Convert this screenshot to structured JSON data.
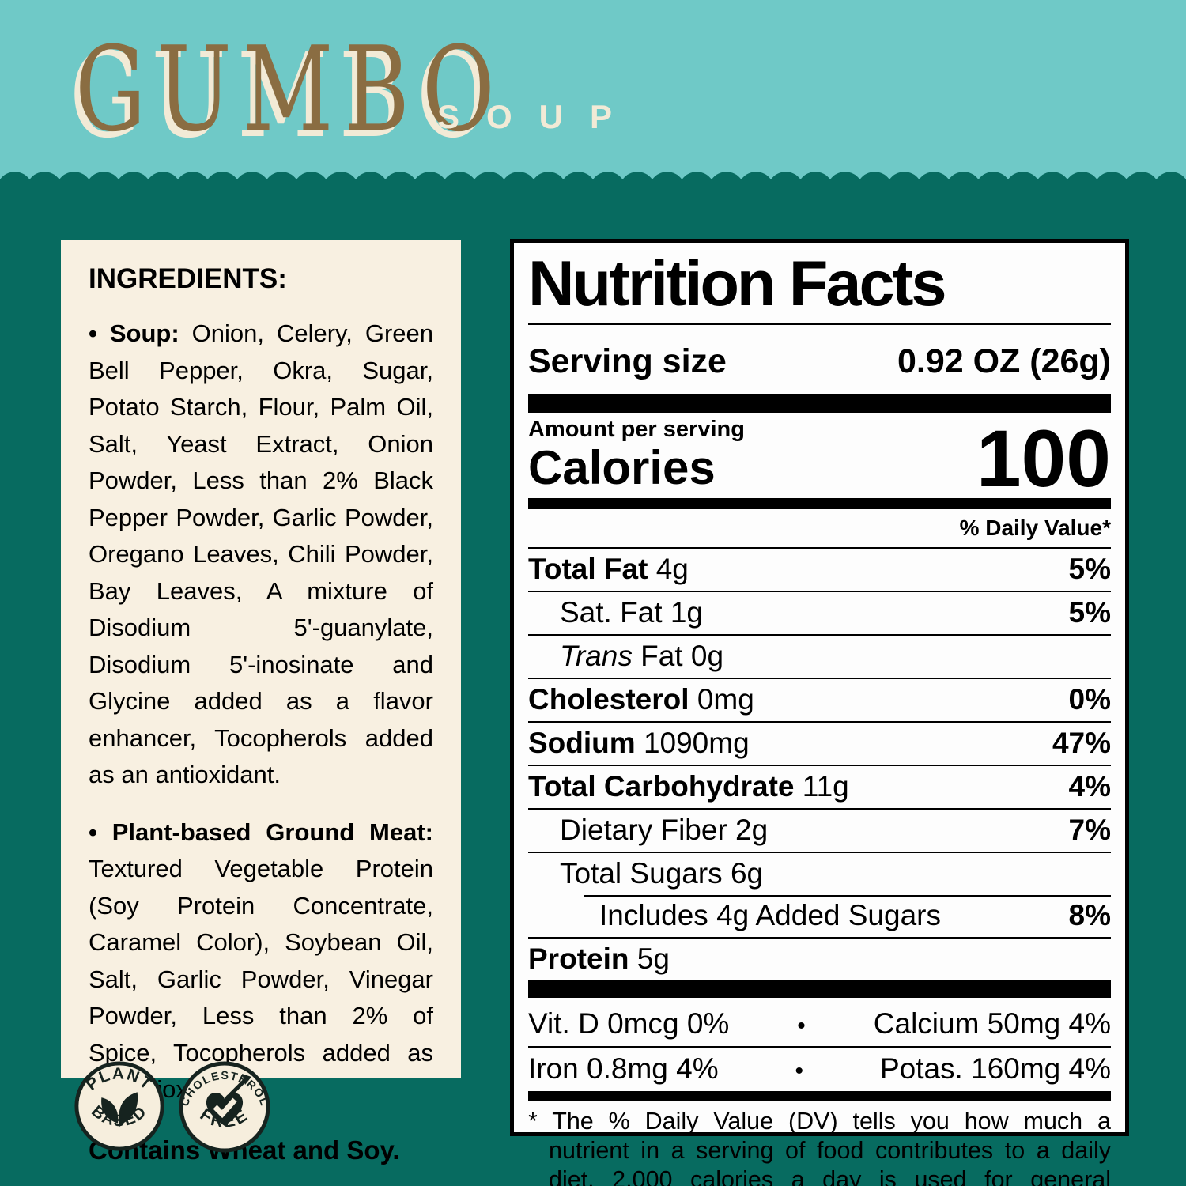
{
  "header": {
    "title": "GUMBO",
    "subtitle": "SOUP"
  },
  "colors": {
    "light_teal": "#6fc9c7",
    "dark_teal": "#076b60",
    "cream_panel": "#f8f0e1",
    "brown_title": "#8a6d42",
    "badge_ink": "#16231f",
    "label_bg": "#fdfdfd"
  },
  "ingredients": {
    "heading": "INGREDIENTS:",
    "paragraphs": [
      {
        "bullet": "•",
        "lead": "Soup:",
        "text": " Onion, Celery, Green Bell Pepper, Okra, Sugar, Potato Starch, Flour, Palm Oil, Salt, Yeast Extract, Onion Powder, Less than 2% Black Pepper Powder, Garlic Powder, Oregano Leaves, Chili Powder, Bay Leaves, A mixture of Disodium 5'-guanylate, Disodium 5'-inosinate and Glycine added as a flavor enhancer, Tocopherols added as an antioxidant."
      },
      {
        "bullet": "•",
        "lead": "Plant-based Ground Meat:",
        "text": " Textured Vegetable Protein (Soy Protein Concentrate, Caramel Color), Soybean Oil, Salt, Garlic Powder, Vinegar Powder, Less than 2% of Spice, Tocopherols added as an antioxidant."
      }
    ],
    "contains": "Contains Wheat and Soy."
  },
  "badges": [
    {
      "icon": "leaves-icon",
      "top": "PLANT",
      "bottom": "BASED"
    },
    {
      "icon": "heart-check-icon",
      "top": "CHOLESTEROL",
      "bottom": "FREE"
    }
  ],
  "nutrition": {
    "title": "Nutrition Facts",
    "serving_size_label": "Serving size",
    "serving_size_value": "0.92 OZ (26g)",
    "amount_label": "Amount per serving",
    "calories_label": "Calories",
    "calories_value": "100",
    "daily_value_header": "% Daily Value*",
    "rows": [
      {
        "bold": "Total Fat",
        "text": " 4g",
        "pct": "5%",
        "indent": 0,
        "rule": "none"
      },
      {
        "text": "Sat. Fat 1g",
        "pct": "5%",
        "indent": 1,
        "rule": "full"
      },
      {
        "italic": "Trans",
        "text": " Fat 0g",
        "pct": "",
        "indent": 1,
        "rule": "full"
      },
      {
        "bold": "Cholesterol",
        "text": " 0mg",
        "pct": "0%",
        "indent": 0,
        "rule": "full"
      },
      {
        "bold": "Sodium",
        "text": " 1090mg",
        "pct": "47%",
        "indent": 0,
        "rule": "full"
      },
      {
        "bold": "Total Carbohydrate",
        "text": " 11g",
        "pct": "4%",
        "indent": 0,
        "rule": "full"
      },
      {
        "text": "Dietary Fiber 2g",
        "pct": "7%",
        "indent": 1,
        "rule": "full"
      },
      {
        "text": "Total Sugars 6g",
        "pct": "",
        "indent": 1,
        "rule": "full"
      },
      {
        "text": "Includes 4g Added Sugars",
        "pct": "8%",
        "indent": 2,
        "rule": "partial"
      },
      {
        "bold": "Protein",
        "text": " 5g",
        "pct": "",
        "indent": 0,
        "rule": "full"
      }
    ],
    "vitamin_separator": "•",
    "vitamins": [
      {
        "left": "Vit. D 0mcg 0%",
        "right": "Calcium 50mg 4%"
      },
      {
        "left": "Iron 0.8mg 4%",
        "right": "Potas. 160mg 4%"
      }
    ],
    "footnote": "* The % Daily Value (DV) tells you how much a nutrient in a serving of food contributes to a daily diet. 2,000 calories a day is used for general nutrition advice."
  }
}
